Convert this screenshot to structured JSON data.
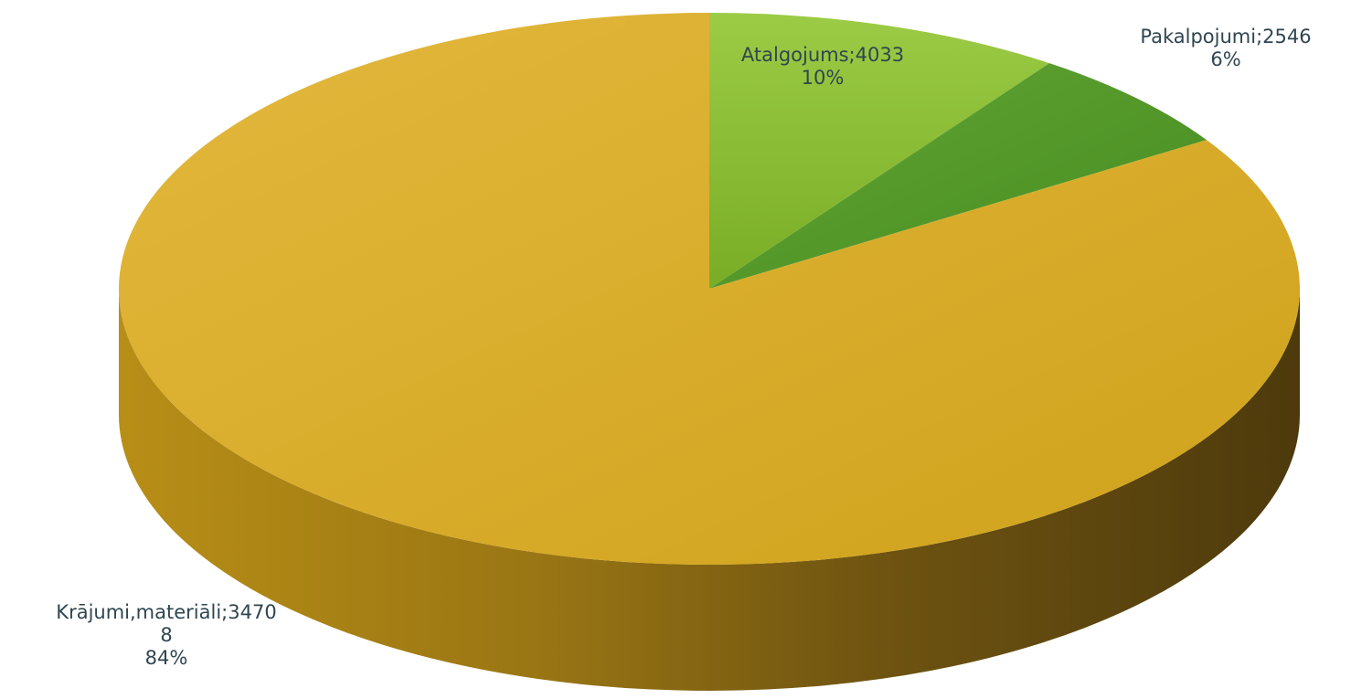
{
  "chart_data": {
    "type": "pie",
    "style": "3d",
    "title": "",
    "slices": [
      {
        "category": "Atalgojums",
        "value": 4033,
        "percent_label": "10%",
        "color": "#8fbf36",
        "label_lines": [
          "Atalgojums;4033",
          "10%"
        ]
      },
      {
        "category": "Pakalpojumi",
        "value": 2546,
        "percent_label": "6%",
        "color": "#5a9a2e",
        "label_lines": [
          "Pakalpojumi;2546",
          "6%"
        ]
      },
      {
        "category": "Krājumi,materiāli",
        "value": 34708,
        "percent_label": "84%",
        "color": "#d4a823",
        "label_lines": [
          "Krājumi,materiāli;3470",
          "8",
          "84%"
        ]
      }
    ]
  }
}
